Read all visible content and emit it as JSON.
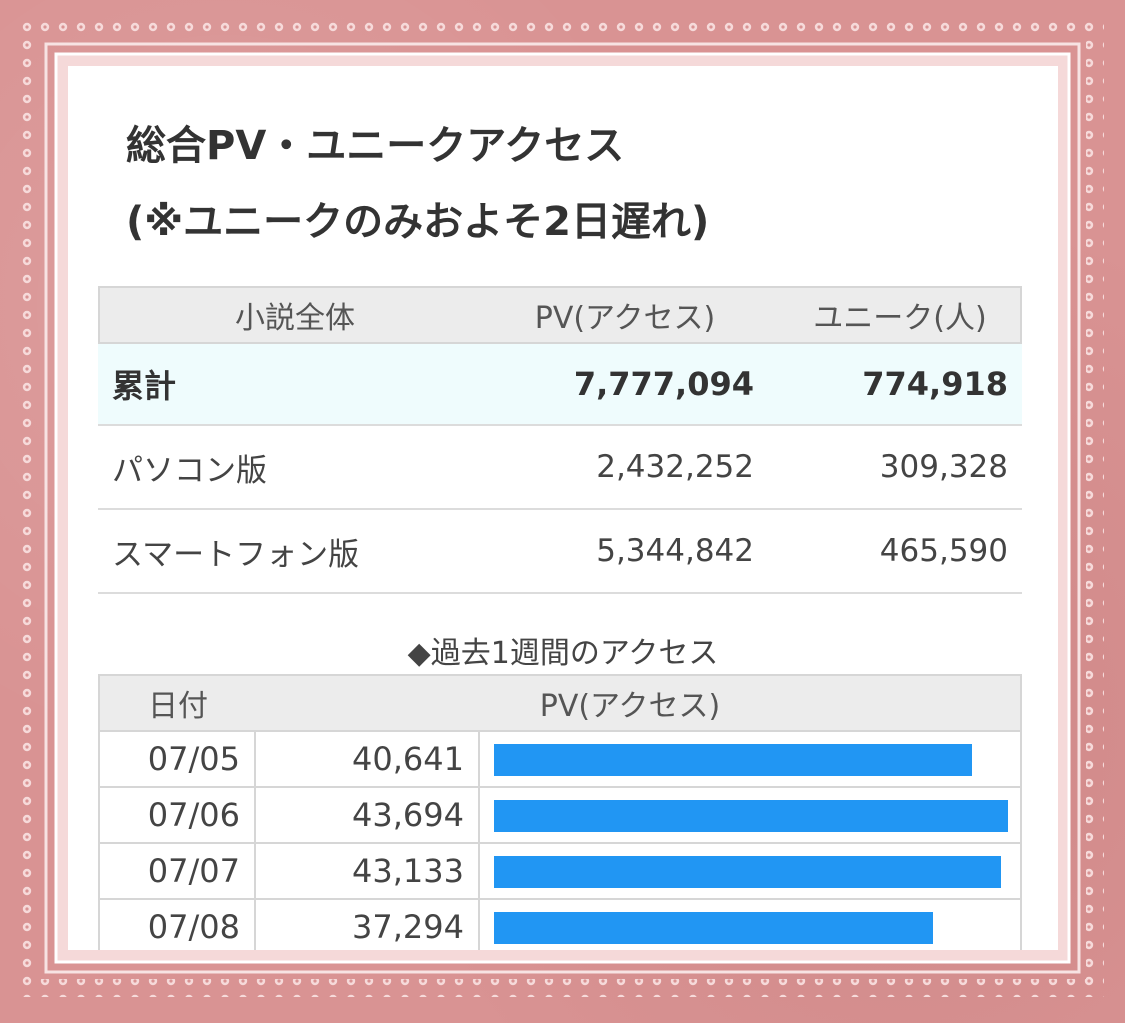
{
  "title_line1": "総合PV・ユニークアクセス",
  "title_line2": "(※ユニークのみおよそ2日遅れ)",
  "summary": {
    "header": {
      "name": "小説全体",
      "pv": "PV(アクセス)",
      "unique": "ユニーク(人)"
    },
    "total": {
      "name": "累計",
      "pv": "7,777,094",
      "unique": "774,918"
    },
    "rows": [
      {
        "name": "パソコン版",
        "pv": "2,432,252",
        "unique": "309,328"
      },
      {
        "name": "スマートフォン版",
        "pv": "5,344,842",
        "unique": "465,590"
      }
    ]
  },
  "weekly": {
    "title": "◆過去1週間のアクセス",
    "header": {
      "date": "日付",
      "pv": "PV(アクセス)"
    },
    "rows": [
      {
        "date": "07/05",
        "pv": "40,641",
        "value": 40641
      },
      {
        "date": "07/06",
        "pv": "43,694",
        "value": 43694
      },
      {
        "date": "07/07",
        "pv": "43,133",
        "value": 43133
      },
      {
        "date": "07/08",
        "pv": "37,294",
        "value": 37294
      }
    ],
    "bar_color": "#2196f3",
    "max_value": 43694
  },
  "colors": {
    "background": "#d99393",
    "header_gray": "#ececec",
    "total_row": "#effcfd"
  }
}
